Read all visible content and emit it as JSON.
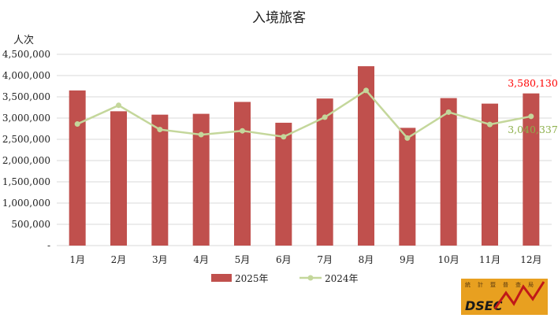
{
  "chart_data": {
    "type": "bar",
    "title": "入境旅客",
    "ylabel": "人次",
    "ylim": [
      0,
      4500000
    ],
    "ytick_step": 500000,
    "ytick_labels": [
      "-",
      "500,000",
      "1,000,000",
      "1,500,000",
      "2,000,000",
      "2,500,000",
      "3,000,000",
      "3,500,000",
      "4,000,000",
      "4,500,000"
    ],
    "categories": [
      "1月",
      "2月",
      "3月",
      "4月",
      "5月",
      "6月",
      "7月",
      "8月",
      "9月",
      "10月",
      "11月",
      "12月"
    ],
    "series": [
      {
        "name": "2025年",
        "kind": "bar",
        "color": "#c0504d",
        "values": [
          3650000,
          3160000,
          3080000,
          3100000,
          3380000,
          2890000,
          3460000,
          4220000,
          2770000,
          3470000,
          3340000,
          3580130
        ]
      },
      {
        "name": "2024年",
        "kind": "line",
        "color": "#c4d79b",
        "values": [
          2860000,
          3300000,
          2730000,
          2610000,
          2700000,
          2560000,
          3020000,
          3650000,
          2530000,
          3140000,
          2850000,
          3040337
        ]
      }
    ],
    "annotations": {
      "last_2025": "3,580,130",
      "last_2025_color": "#ff0000",
      "last_2024": "3,040,337",
      "last_2024_color": "#8db04a"
    },
    "grid": true,
    "legend_position": "bottom"
  },
  "logo": {
    "text": "DSEC",
    "glyphs": [
      "統",
      "計",
      "暨",
      "普",
      "查",
      "局"
    ]
  }
}
